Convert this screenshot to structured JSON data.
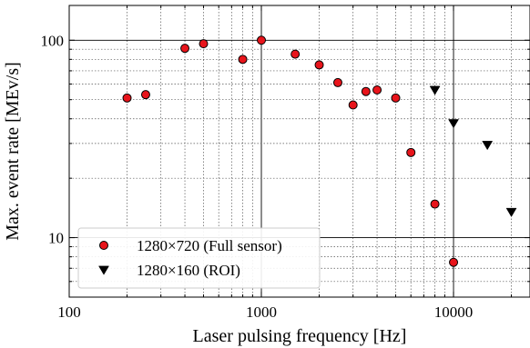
{
  "chart_data": {
    "type": "scatter",
    "title": "",
    "xlabel": "Laser pulsing frequency [Hz]",
    "ylabel": "Max. event rate [MEv/s]",
    "xscale": "log",
    "yscale": "log",
    "xlim": [
      100,
      25000
    ],
    "ylim": [
      5,
      150
    ],
    "x_ticks": [
      100,
      1000,
      10000
    ],
    "x_tick_labels": [
      "100",
      "1000",
      "10000"
    ],
    "y_ticks": [
      10,
      100
    ],
    "y_tick_labels": [
      "10",
      "100"
    ],
    "grid": "major solid, minor dotted",
    "legend_position": "lower-left",
    "series": [
      {
        "name": "1280×720 (Full sensor)",
        "marker": "circle",
        "color": "#e8141b",
        "x": [
          200,
          250,
          400,
          500,
          800,
          1000,
          1500,
          2000,
          2500,
          3000,
          3500,
          4000,
          5000,
          6000,
          8000,
          10000
        ],
        "y": [
          51,
          53,
          91,
          96,
          80,
          100,
          85,
          75,
          61,
          47,
          55,
          56,
          51,
          27,
          14.8,
          7.5
        ]
      },
      {
        "name": "1280×160 (ROI)",
        "marker": "triangle-down",
        "color": "#000000",
        "x": [
          8000,
          10000,
          15000,
          20000
        ],
        "y": [
          56,
          38,
          29.5,
          13.5
        ]
      }
    ]
  }
}
